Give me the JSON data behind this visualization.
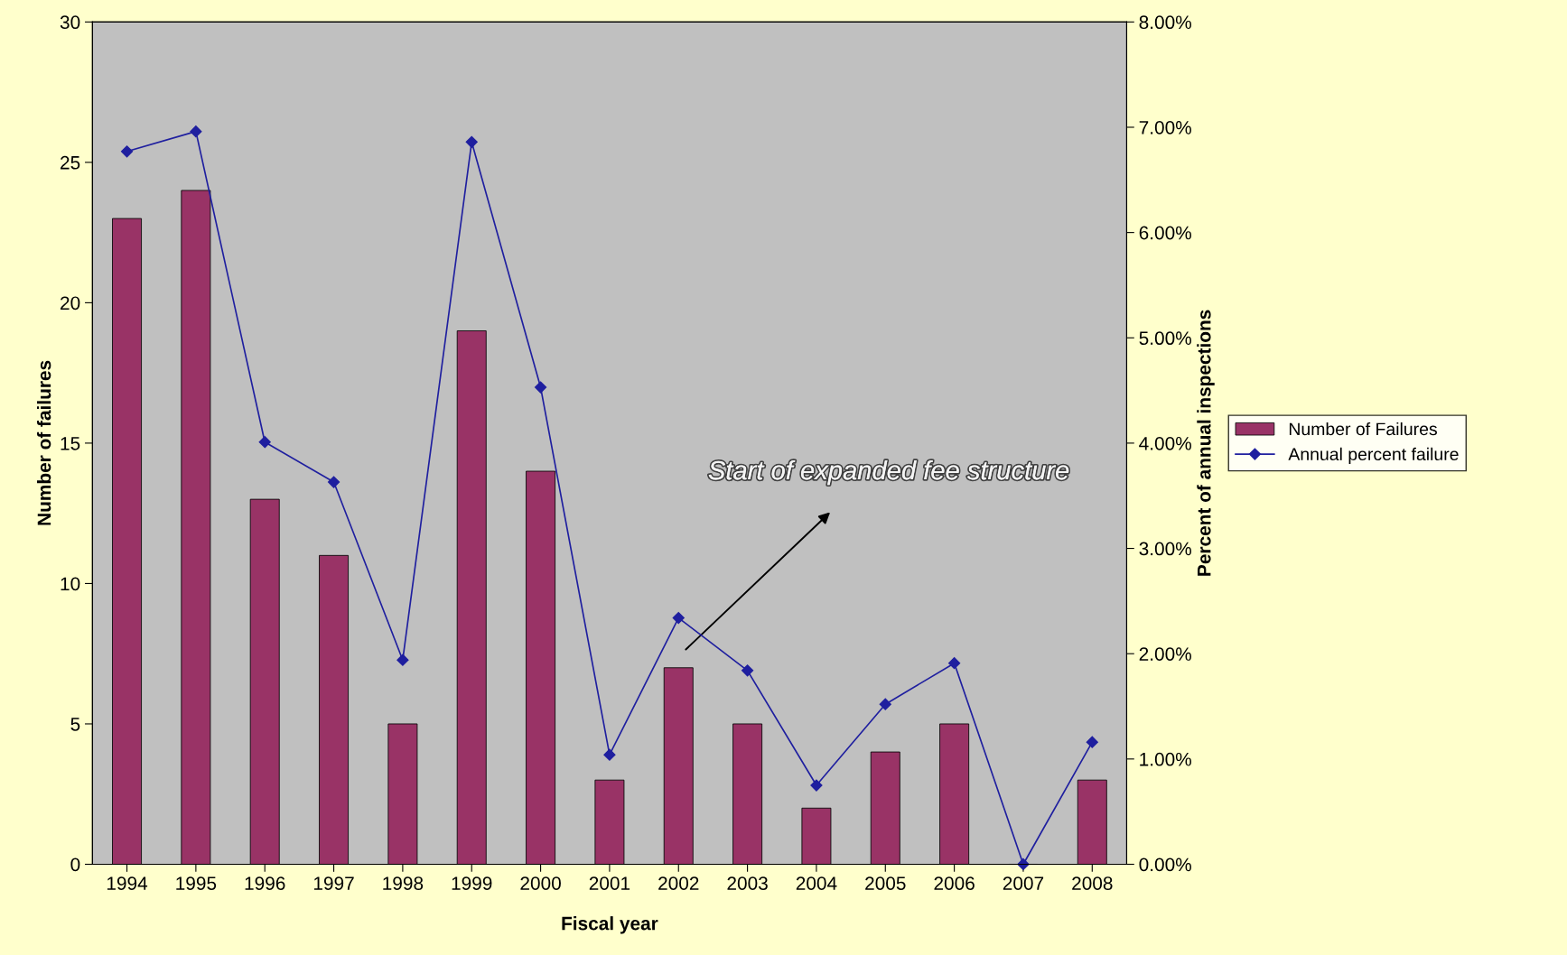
{
  "chart_data": {
    "type": "bar",
    "xlabel": "Fiscal year",
    "ylabel": "Number of failures",
    "y2label": "Percent of annual inspections",
    "categories": [
      "1994",
      "1995",
      "1996",
      "1997",
      "1998",
      "1999",
      "2000",
      "2001",
      "2002",
      "2003",
      "2004",
      "2005",
      "2006",
      "2007",
      "2008"
    ],
    "series": [
      {
        "name": "Number of Failures",
        "color": "#993366",
        "values": [
          23,
          24,
          13,
          11,
          5,
          19,
          14,
          3,
          7,
          5,
          2,
          4,
          5,
          0,
          3
        ]
      },
      {
        "name": "Annual percent failure",
        "type": "line",
        "axis": "y2",
        "color": "#1f1f9f",
        "marker": "diamond",
        "values": [
          6.77,
          6.96,
          4.01,
          3.63,
          1.94,
          6.86,
          4.53,
          1.04,
          2.34,
          1.84,
          0.75,
          1.52,
          1.91,
          0,
          1.16
        ]
      }
    ],
    "ylim": [
      0,
      30
    ],
    "yticks": [
      0,
      5,
      10,
      15,
      20,
      25,
      30
    ],
    "y2lim": [
      0,
      8
    ],
    "y2ticks": [
      {
        "value": 0,
        "label": "0.00%"
      },
      {
        "value": 1,
        "label": "1.00%"
      },
      {
        "value": 2,
        "label": "2.00%"
      },
      {
        "value": 3,
        "label": "3.00%"
      },
      {
        "value": 4,
        "label": "4.00%"
      },
      {
        "value": 5,
        "label": "5.00%"
      },
      {
        "value": 6,
        "label": "6.00%"
      },
      {
        "value": 7,
        "label": "7.00%"
      },
      {
        "value": 8,
        "label": "8.00%"
      }
    ],
    "annotations": [
      "Start of expanded fee structure"
    ],
    "grid": false,
    "legend": "right"
  }
}
